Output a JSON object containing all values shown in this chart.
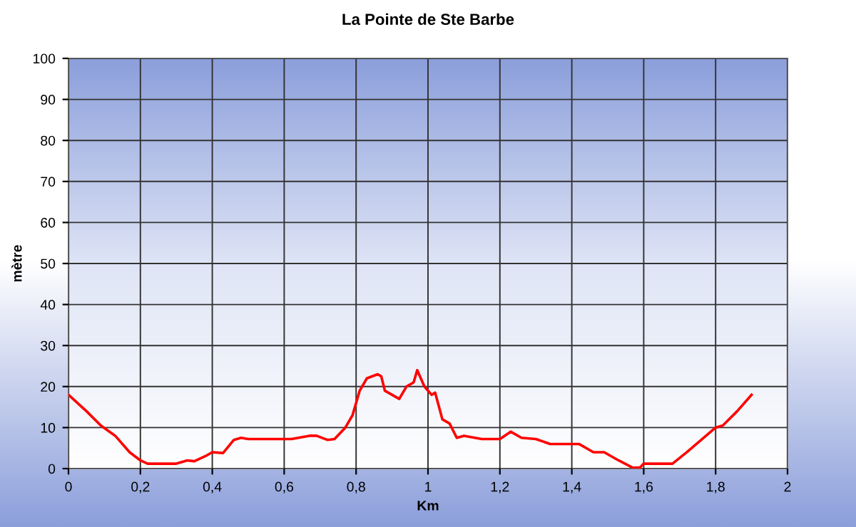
{
  "chart_data": {
    "type": "line",
    "title": "La Pointe de Ste Barbe",
    "xlabel": "Km",
    "ylabel": "mètre",
    "x": [
      0,
      0.05,
      0.09,
      0.13,
      0.17,
      0.2,
      0.22,
      0.3,
      0.33,
      0.35,
      0.38,
      0.4,
      0.43,
      0.46,
      0.48,
      0.5,
      0.62,
      0.67,
      0.69,
      0.72,
      0.74,
      0.77,
      0.79,
      0.81,
      0.83,
      0.86,
      0.87,
      0.88,
      0.9,
      0.92,
      0.94,
      0.96,
      0.97,
      0.99,
      1.01,
      1.02,
      1.04,
      1.06,
      1.08,
      1.1,
      1.15,
      1.2,
      1.23,
      1.26,
      1.3,
      1.34,
      1.42,
      1.46,
      1.49,
      1.53,
      1.57,
      1.59,
      1.6,
      1.68,
      1.72,
      1.76,
      1.8,
      1.82,
      1.86,
      1.9
    ],
    "series": [
      {
        "color": "#ff0000",
        "values": [
          18,
          14,
          10.5,
          8,
          4,
          2,
          1.2,
          1.2,
          2,
          1.8,
          3,
          4,
          3.8,
          7,
          7.5,
          7.2,
          7.2,
          8,
          8,
          7,
          7.2,
          10,
          13,
          19,
          22,
          23,
          22.5,
          19,
          18,
          17,
          20,
          21,
          24,
          20,
          18,
          18.5,
          12,
          11,
          7.5,
          8,
          7.2,
          7.2,
          9,
          7.5,
          7.2,
          6,
          6,
          4,
          4,
          2,
          0.2,
          0.3,
          1.2,
          1.2,
          4,
          7,
          10,
          10.5,
          14,
          18
        ]
      }
    ],
    "xlim": [
      0,
      2
    ],
    "ylim": [
      0,
      100
    ],
    "xticks": [
      0,
      {
        "value": 0.2,
        "label": "0,2"
      },
      {
        "value": 0.4,
        "label": "0,4"
      },
      {
        "value": 0.6,
        "label": "0,6"
      },
      {
        "value": 0.8,
        "label": "0,8"
      },
      1,
      {
        "value": 1.2,
        "label": "1,2"
      },
      {
        "value": 1.4,
        "label": "1,4"
      },
      {
        "value": 1.6,
        "label": "1,6"
      },
      {
        "value": 1.8,
        "label": "1,8"
      },
      2
    ],
    "yticks": [
      0,
      10,
      20,
      30,
      40,
      50,
      60,
      70,
      80,
      90,
      100
    ],
    "grid": true,
    "legend": false,
    "marker": "none",
    "line_style": "solid"
  }
}
